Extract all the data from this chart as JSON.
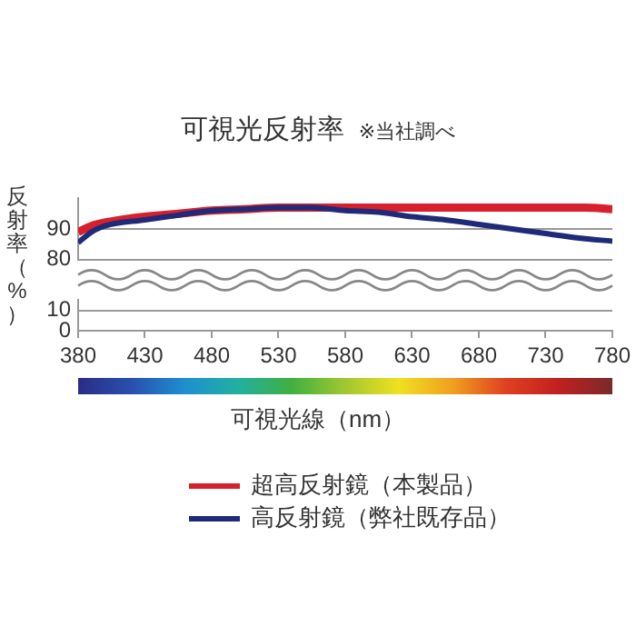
{
  "chart_data": [
    {
      "type": "line",
      "title": "可視光反射率",
      "annotations": [
        "※当社調べ"
      ],
      "ylabel": "反射率（%）",
      "xlim": [
        380,
        780
      ],
      "ylim": [
        80,
        100
      ],
      "yticks": [
        80,
        90
      ],
      "tick_labels": "y",
      "grid": "y",
      "legend": "bottom",
      "marker": "none",
      "series": [
        {
          "name": "超高反射鏡（本製品）",
          "color": "#d7202c",
          "x": [
            380,
            390,
            405,
            430,
            455,
            480,
            505,
            530,
            555,
            580,
            630,
            680,
            730,
            760,
            780
          ],
          "values": [
            89,
            91,
            92.5,
            94,
            95,
            96,
            96.5,
            97,
            97,
            97,
            97,
            97,
            97,
            97,
            96.5
          ]
        },
        {
          "name": "高反射鏡（弊社既存品）",
          "color": "#1f2a78",
          "x": [
            380,
            390,
            400,
            430,
            455,
            480,
            505,
            530,
            555,
            580,
            605,
            630,
            655,
            680,
            705,
            730,
            755,
            780
          ],
          "values": [
            85.5,
            89,
            91,
            93,
            94.5,
            96,
            96.5,
            97,
            97,
            96,
            95.5,
            94,
            93,
            91.5,
            90,
            88.5,
            87,
            86
          ]
        }
      ]
    },
    {
      "type": "line",
      "xlabel": "可視光線（nm）",
      "xlim": [
        380,
        780
      ],
      "xticks": [
        380,
        430,
        480,
        530,
        580,
        630,
        680,
        730,
        780
      ],
      "ylim": [
        0,
        15
      ],
      "yticks": [
        0,
        10
      ],
      "grid": "y"
    }
  ]
}
